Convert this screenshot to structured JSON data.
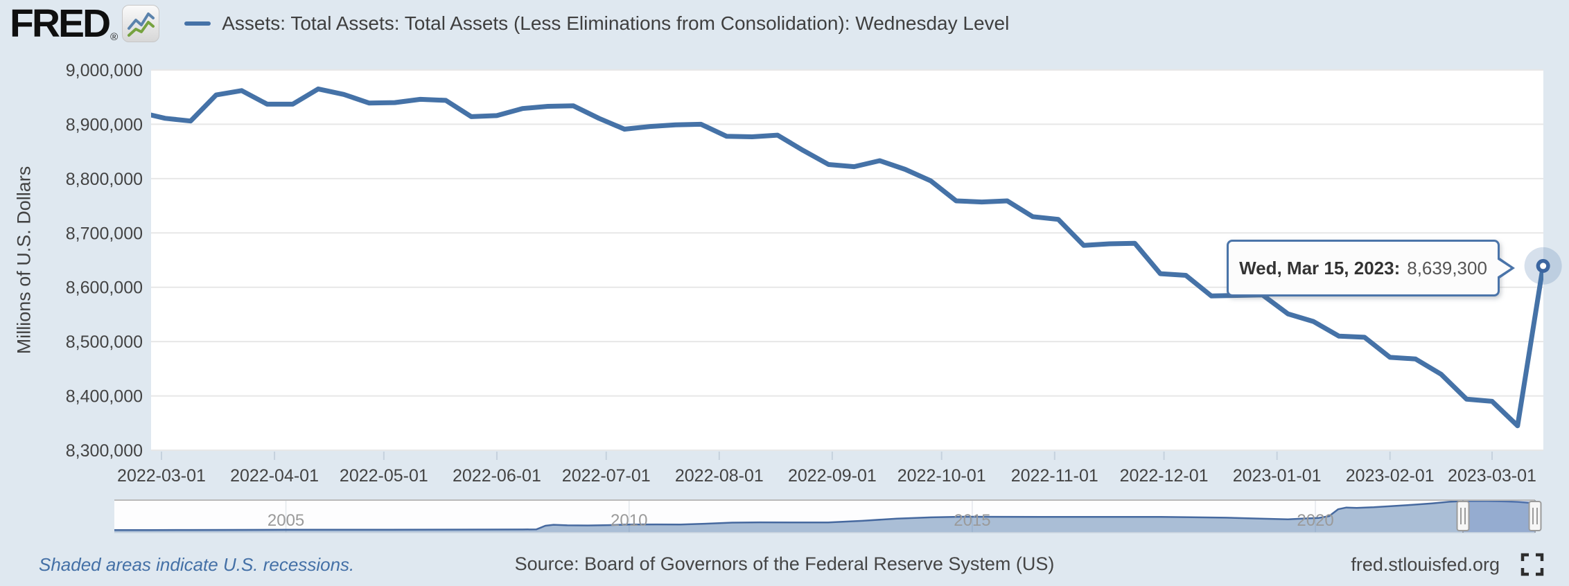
{
  "header": {
    "logo_text": "FRED",
    "logo_reg": "®",
    "series_title": "Assets: Total Assets: Total Assets (Less Eliminations from Consolidation): Wednesday Level"
  },
  "tooltip": {
    "label": "Wed, Mar 15, 2023:",
    "value": "8,639,300"
  },
  "footer": {
    "recessions_note": "Shaded areas indicate U.S. recessions.",
    "source": "Source: Board of Governors of the Federal Reserve System (US)",
    "site": "fred.stlouisfed.org"
  },
  "colors": {
    "line": "#4572a7",
    "page_bg": "#dfe8f0",
    "plot_bg": "#ffffff",
    "grid": "#e7e7e7",
    "tick": "#c5d1dd",
    "tooltip_border": "#4a74a9",
    "link_blue": "#4470a6",
    "nav_fill": "rgba(69,114,167,0.45)",
    "nav_line": "#46699f",
    "nav_mask_selected": "rgba(102,133,194,0.3)",
    "halo": "rgba(69,114,167,0.22)",
    "marker": "#3b65a0"
  },
  "chart_data": [
    {
      "type": "line",
      "title": "Assets: Total Assets: Total Assets (Less Eliminations from Consolidation): Wednesday Level",
      "xlabel": "",
      "ylabel": "Millions of U.S. Dollars",
      "ylim": [
        8300000,
        9000000
      ],
      "grid": "horizontal-only",
      "y_tick_labels": [
        "9,000,000",
        "8,900,000",
        "8,800,000",
        "8,700,000",
        "8,600,000",
        "8,500,000",
        "8,400,000",
        "8,300,000"
      ],
      "x_tick_labels": [
        "2022-03-01",
        "2022-04-01",
        "2022-05-01",
        "2022-06-01",
        "2022-07-01",
        "2022-08-01",
        "2022-09-01",
        "2022-10-01",
        "2022-11-01",
        "2022-12-01",
        "2023-01-01",
        "2023-02-01",
        "2023-03-01"
      ],
      "x_range": [
        "2022-02-23",
        "2023-03-15"
      ],
      "series": [
        {
          "name": "Assets: Total Assets: Total Assets (Less Eliminations from Consolidation): Wednesday Level",
          "color": "#4572a7",
          "dates": [
            "2022-02-23",
            "2022-03-02",
            "2022-03-09",
            "2022-03-16",
            "2022-03-23",
            "2022-03-30",
            "2022-04-06",
            "2022-04-13",
            "2022-04-20",
            "2022-04-27",
            "2022-05-04",
            "2022-05-11",
            "2022-05-18",
            "2022-05-25",
            "2022-06-01",
            "2022-06-08",
            "2022-06-15",
            "2022-06-22",
            "2022-06-29",
            "2022-07-06",
            "2022-07-13",
            "2022-07-20",
            "2022-07-27",
            "2022-08-03",
            "2022-08-10",
            "2022-08-17",
            "2022-08-24",
            "2022-08-31",
            "2022-09-07",
            "2022-09-14",
            "2022-09-21",
            "2022-09-28",
            "2022-10-05",
            "2022-10-12",
            "2022-10-19",
            "2022-10-26",
            "2022-11-02",
            "2022-11-09",
            "2022-11-16",
            "2022-11-23",
            "2022-11-30",
            "2022-12-07",
            "2022-12-14",
            "2022-12-21",
            "2022-12-28",
            "2023-01-04",
            "2023-01-11",
            "2023-01-18",
            "2023-01-25",
            "2023-02-01",
            "2023-02-08",
            "2023-02-15",
            "2023-02-22",
            "2023-03-01",
            "2023-03-08",
            "2023-03-15"
          ],
          "values": [
            8922000,
            8911000,
            8906000,
            8954000,
            8962000,
            8937000,
            8937000,
            8965000,
            8955000,
            8939000,
            8940000,
            8946000,
            8944000,
            8914000,
            8916000,
            8929000,
            8933000,
            8934000,
            8911000,
            8891000,
            8896000,
            8899000,
            8900000,
            8878000,
            8877000,
            8880000,
            8852000,
            8826000,
            8822000,
            8833000,
            8817000,
            8796000,
            8759000,
            8757000,
            8759000,
            8730000,
            8725000,
            8677000,
            8680000,
            8681000,
            8625000,
            8622000,
            8584000,
            8585000,
            8586000,
            8551000,
            8537000,
            8510000,
            8508000,
            8471000,
            8468000,
            8440000,
            8394000,
            8390000,
            8345000,
            8639300
          ]
        }
      ],
      "highlighted_point": {
        "date": "2023-03-15",
        "value": 8639300,
        "formatted": "8,639,300"
      }
    },
    {
      "type": "area",
      "role": "range-navigator",
      "x_tick_labels": [
        "2005",
        "2010",
        "2015",
        "2020"
      ],
      "x_tick_years": [
        2005,
        2010,
        2015,
        2020
      ],
      "x_range": [
        2002.5,
        2023.2
      ],
      "ylim": [
        0,
        9000000
      ],
      "selected_range": [
        2022.15,
        2023.2
      ],
      "series": [
        {
          "name": "full-history",
          "color": "#4572a7",
          "points": [
            [
              2002.5,
              720000
            ],
            [
              2003,
              742000
            ],
            [
              2003.6,
              758000
            ],
            [
              2004.2,
              778000
            ],
            [
              2005,
              812000
            ],
            [
              2005.8,
              830000
            ],
            [
              2006.5,
              845000
            ],
            [
              2007.2,
              860000
            ],
            [
              2007.9,
              880000
            ],
            [
              2008.45,
              905000
            ],
            [
              2008.65,
              940000
            ],
            [
              2008.78,
              1950000
            ],
            [
              2008.9,
              2240000
            ],
            [
              2009.1,
              2080000
            ],
            [
              2009.4,
              2030000
            ],
            [
              2009.7,
              2140000
            ],
            [
              2010,
              2280000
            ],
            [
              2010.4,
              2330000
            ],
            [
              2010.75,
              2300000
            ],
            [
              2011.1,
              2520000
            ],
            [
              2011.5,
              2830000
            ],
            [
              2011.9,
              2920000
            ],
            [
              2012.4,
              2870000
            ],
            [
              2012.9,
              2900000
            ],
            [
              2013.4,
              3350000
            ],
            [
              2013.9,
              3980000
            ],
            [
              2014.4,
              4320000
            ],
            [
              2014.85,
              4500000
            ],
            [
              2015.4,
              4490000
            ],
            [
              2016,
              4470000
            ],
            [
              2016.6,
              4455000
            ],
            [
              2017.2,
              4465000
            ],
            [
              2017.75,
              4450000
            ],
            [
              2018.2,
              4365000
            ],
            [
              2018.7,
              4220000
            ],
            [
              2019.2,
              3960000
            ],
            [
              2019.6,
              3775000
            ],
            [
              2019.85,
              4020000
            ],
            [
              2020.05,
              4175000
            ],
            [
              2020.2,
              4670000
            ],
            [
              2020.33,
              6620000
            ],
            [
              2020.45,
              7095000
            ],
            [
              2020.6,
              7010000
            ],
            [
              2020.85,
              7180000
            ],
            [
              2021.1,
              7500000
            ],
            [
              2021.4,
              7850000
            ],
            [
              2021.7,
              8280000
            ],
            [
              2021.95,
              8720000
            ],
            [
              2022.15,
              8910000
            ],
            [
              2022.3,
              8954000
            ],
            [
              2022.5,
              8915000
            ],
            [
              2022.65,
              8880000
            ],
            [
              2022.8,
              8795000
            ],
            [
              2022.95,
              8680000
            ],
            [
              2023.05,
              8540000
            ],
            [
              2023.12,
              8420000
            ],
            [
              2023.17,
              8345000
            ],
            [
              2023.2,
              8639300
            ]
          ]
        }
      ]
    }
  ]
}
